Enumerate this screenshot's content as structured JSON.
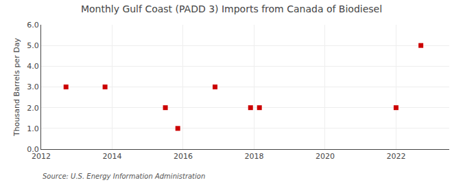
{
  "chart_data": {
    "type": "scatter",
    "title": "Monthly Gulf Coast (PADD 3) Imports from Canada of Biodiesel",
    "ylabel": "Thousand Barrels per Day",
    "annotations": [
      "Source: U.S. Energy Information Administration"
    ],
    "x": [
      2012.7,
      2013.8,
      2015.5,
      2015.85,
      2016.9,
      2017.9,
      2018.15,
      2022.0,
      2022.7
    ],
    "values": [
      3.0,
      3.0,
      2.0,
      1.0,
      3.0,
      2.0,
      2.0,
      2.0,
      5.0
    ],
    "color": "#cc0000",
    "marker": "square",
    "xlim": [
      2012,
      2023.5
    ],
    "ylim": [
      0.0,
      6.0
    ],
    "xticks": [
      2012,
      2014,
      2016,
      2018,
      2020,
      2022
    ],
    "yticks": [
      {
        "value": 0,
        "label": "0.0"
      },
      {
        "value": 1,
        "label": "1.0"
      },
      {
        "value": 2,
        "label": "2.0"
      },
      {
        "value": 3,
        "label": "3.0"
      },
      {
        "value": 4,
        "label": "4.0"
      },
      {
        "value": 5,
        "label": "5.0"
      },
      {
        "value": 6,
        "label": "6.0"
      }
    ],
    "grid": true
  }
}
